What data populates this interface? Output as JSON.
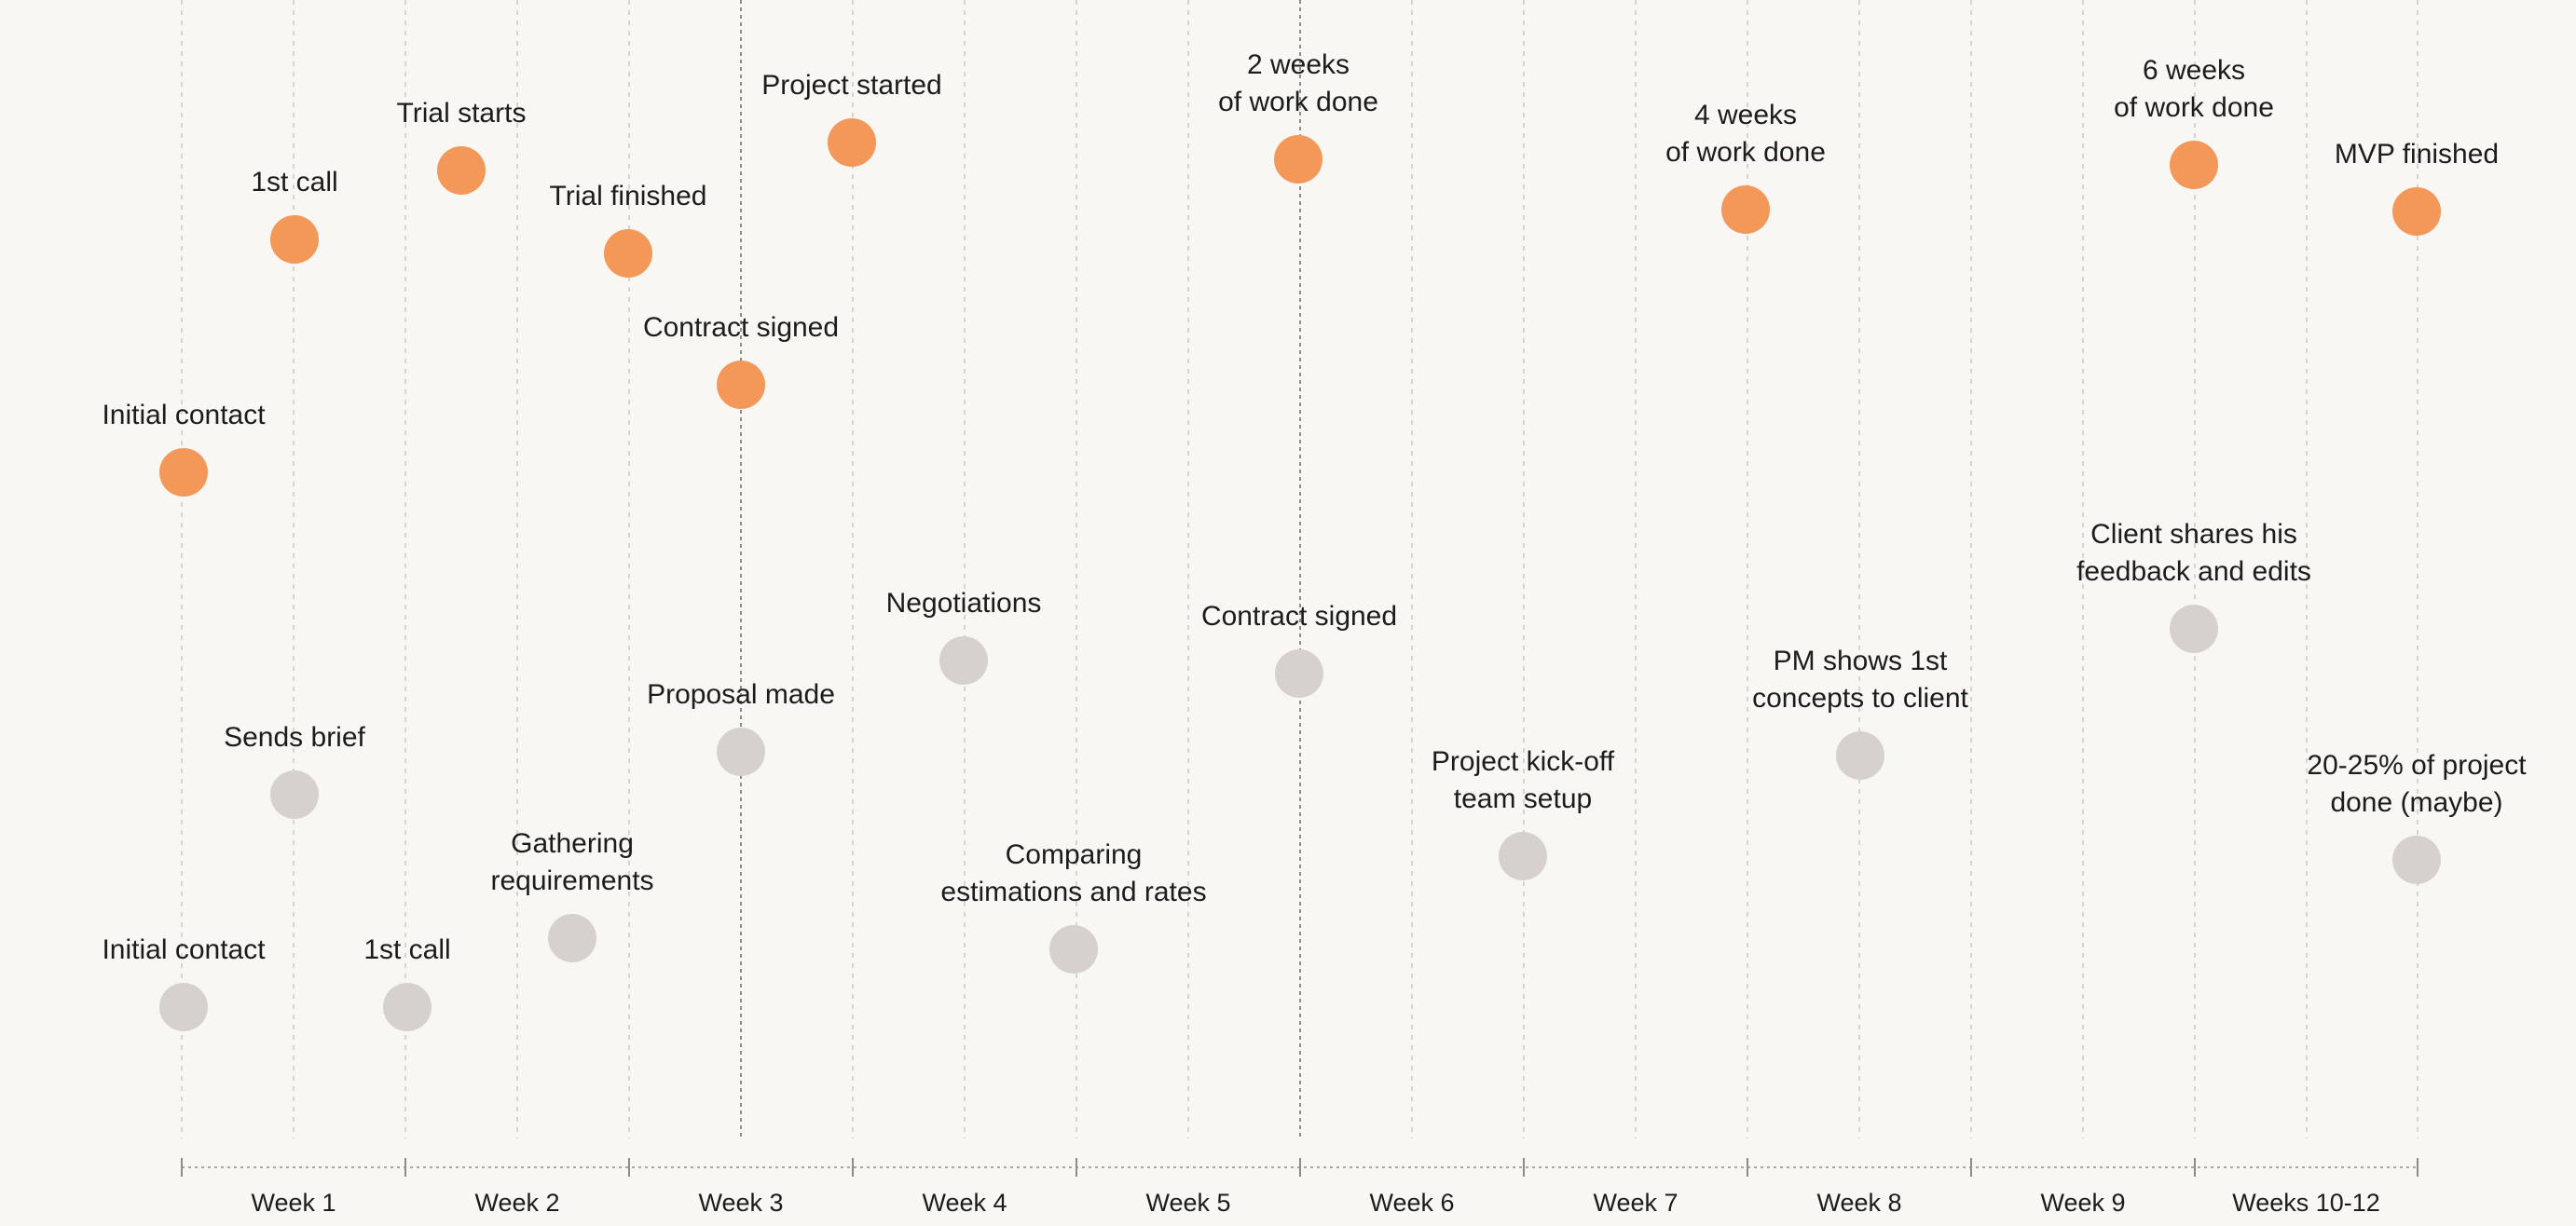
{
  "colors": {
    "background": "#f8f7f3",
    "accent": "#f4985a",
    "muted": "#d6d1cd",
    "grid": "#cfcbc6",
    "grid_strong": "#8f8b86",
    "text": "#1c1c1c"
  },
  "weeks": [
    "Week 1",
    "Week 2",
    "Week 3",
    "Week 4",
    "Week 5",
    "Week 6",
    "Week 7",
    "Week 8",
    "Week 9",
    "Weeks 10-12"
  ],
  "orange_events": [
    {
      "label": [
        "Initial contact"
      ]
    },
    {
      "label": [
        "1st call"
      ]
    },
    {
      "label": [
        "Trial starts"
      ]
    },
    {
      "label": [
        "Trial finished"
      ]
    },
    {
      "label": [
        "Contract signed"
      ]
    },
    {
      "label": [
        "Project started"
      ]
    },
    {
      "label": [
        "2 weeks",
        "of work done"
      ]
    },
    {
      "label": [
        "4 weeks",
        "of work done"
      ]
    },
    {
      "label": [
        "6 weeks",
        "of work done"
      ]
    },
    {
      "label": [
        "MVP finished"
      ]
    }
  ],
  "gray_events": [
    {
      "label": [
        "Initial contact"
      ]
    },
    {
      "label": [
        "Sends brief"
      ]
    },
    {
      "label": [
        "1st call"
      ]
    },
    {
      "label": [
        "Gathering",
        "requirements"
      ]
    },
    {
      "label": [
        "Proposal made"
      ]
    },
    {
      "label": [
        "Negotiations"
      ]
    },
    {
      "label": [
        "Comparing",
        "estimations and rates"
      ]
    },
    {
      "label": [
        "Contract signed"
      ]
    },
    {
      "label": [
        "Project kick-off",
        "team setup"
      ]
    },
    {
      "label": [
        "PM shows 1st",
        "concepts to client"
      ]
    },
    {
      "label": [
        "Client shares his",
        "feedback and edits"
      ]
    },
    {
      "label": [
        "20-25% of project",
        "done (maybe)"
      ]
    }
  ]
}
